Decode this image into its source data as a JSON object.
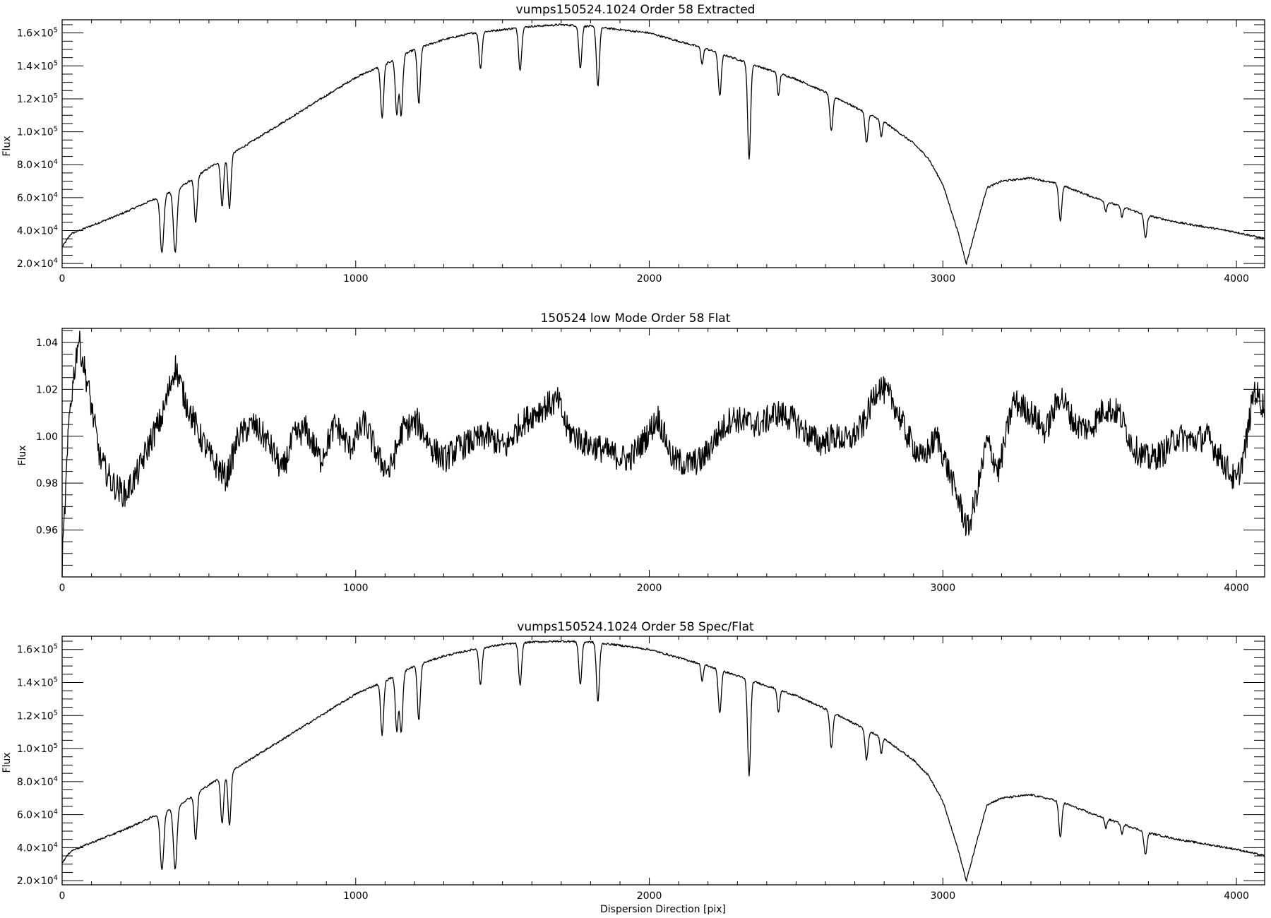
{
  "chart_data": [
    {
      "id": "extracted",
      "type": "line",
      "title": "vumps150524.1024 Order 58 Extracted",
      "xlabel": "",
      "ylabel": "Flux",
      "xlim": [
        0,
        4096
      ],
      "ylim": [
        17500,
        168000
      ],
      "x_ticks": [
        0,
        1000,
        2000,
        3000,
        4000
      ],
      "x_tick_labels": [
        "0",
        "1000",
        "2000",
        "3000",
        "4000"
      ],
      "y_ticks": [
        20000,
        40000,
        60000,
        80000,
        100000,
        120000,
        140000,
        160000
      ],
      "y_tick_labels": [
        {
          "mant": "2.0×10",
          "exp": "4"
        },
        {
          "mant": "4.0×10",
          "exp": "4"
        },
        {
          "mant": "6.0×10",
          "exp": "4"
        },
        {
          "mant": "8.0×10",
          "exp": "4"
        },
        {
          "mant": "1.0×10",
          "exp": "5"
        },
        {
          "mant": "1.2×10",
          "exp": "5"
        },
        {
          "mant": "1.4×10",
          "exp": "5"
        },
        {
          "mant": "1.6×10",
          "exp": "5"
        }
      ],
      "y_minor_step": 5000,
      "grid": false,
      "series": [
        {
          "envelope_x": [
            0,
            30,
            100,
            200,
            300,
            400,
            500,
            600,
            700,
            800,
            900,
            1000,
            1100,
            1200,
            1300,
            1400,
            1500,
            1600,
            1700,
            1800,
            1900,
            2000,
            2100,
            2200,
            2300,
            2400,
            2500,
            2600,
            2700,
            2800,
            2900,
            2950,
            3000,
            3050,
            3080,
            3110,
            3150,
            3200,
            3300,
            3400,
            3500,
            3600,
            3700,
            3800,
            3900,
            4000,
            4096
          ],
          "envelope_y": [
            30000,
            38000,
            43000,
            50000,
            58000,
            66000,
            78000,
            89000,
            100000,
            111000,
            122000,
            133000,
            141000,
            150000,
            156000,
            160000,
            162000,
            164000,
            165000,
            164000,
            162000,
            160000,
            155000,
            150000,
            144000,
            138000,
            132000,
            124000,
            115000,
            106000,
            93000,
            84000,
            68000,
            40000,
            20000,
            40000,
            66000,
            70000,
            72000,
            68000,
            61000,
            55000,
            49000,
            45000,
            42000,
            39000,
            35000
          ],
          "absorption_lines": [
            {
              "x": 340,
              "depth": 35000,
              "width": 6
            },
            {
              "x": 385,
              "depth": 38000,
              "width": 6
            },
            {
              "x": 455,
              "depth": 28000,
              "width": 5
            },
            {
              "x": 545,
              "depth": 28000,
              "width": 5
            },
            {
              "x": 570,
              "depth": 32000,
              "width": 5
            },
            {
              "x": 1090,
              "depth": 32000,
              "width": 5
            },
            {
              "x": 1140,
              "depth": 34000,
              "width": 5
            },
            {
              "x": 1155,
              "depth": 36000,
              "width": 5
            },
            {
              "x": 1215,
              "depth": 34000,
              "width": 5
            },
            {
              "x": 1425,
              "depth": 22000,
              "width": 5
            },
            {
              "x": 1560,
              "depth": 26000,
              "width": 5
            },
            {
              "x": 1765,
              "depth": 26000,
              "width": 5
            },
            {
              "x": 1825,
              "depth": 36000,
              "width": 5
            },
            {
              "x": 2180,
              "depth": 10000,
              "width": 4
            },
            {
              "x": 2240,
              "depth": 26000,
              "width": 5
            },
            {
              "x": 2340,
              "depth": 58000,
              "width": 5
            },
            {
              "x": 2440,
              "depth": 14000,
              "width": 4
            },
            {
              "x": 2620,
              "depth": 22000,
              "width": 5
            },
            {
              "x": 2740,
              "depth": 18000,
              "width": 5
            },
            {
              "x": 2790,
              "depth": 10000,
              "width": 4
            },
            {
              "x": 3400,
              "depth": 22000,
              "width": 5
            },
            {
              "x": 3555,
              "depth": 6000,
              "width": 4
            },
            {
              "x": 3610,
              "depth": 6000,
              "width": 4
            },
            {
              "x": 3690,
              "depth": 14000,
              "width": 5
            }
          ]
        }
      ]
    },
    {
      "id": "flat",
      "type": "line",
      "title": "150524 low Mode Order 58 Flat",
      "xlabel": "",
      "ylabel": "Flux",
      "xlim": [
        0,
        4096
      ],
      "ylim": [
        0.94,
        1.046
      ],
      "x_ticks": [
        0,
        1000,
        2000,
        3000,
        4000
      ],
      "x_tick_labels": [
        "0",
        "1000",
        "2000",
        "3000",
        "4000"
      ],
      "y_ticks": [
        0.96,
        0.98,
        1.0,
        1.02,
        1.04
      ],
      "y_tick_labels": [
        "0.96",
        "0.98",
        "1.00",
        "1.02",
        "1.04"
      ],
      "y_minor_step": 0.005,
      "grid": false,
      "series": [
        {
          "x": [
            0,
            25,
            55,
            90,
            130,
            170,
            215,
            260,
            300,
            340,
            385,
            420,
            470,
            510,
            560,
            600,
            650,
            700,
            750,
            790,
            830,
            880,
            930,
            980,
            1030,
            1080,
            1115,
            1160,
            1210,
            1260,
            1300,
            1350,
            1400,
            1450,
            1510,
            1560,
            1610,
            1650,
            1690,
            1720,
            1780,
            1830,
            1880,
            1930,
            1980,
            2030,
            2080,
            2130,
            2180,
            2230,
            2280,
            2330,
            2380,
            2430,
            2480,
            2530,
            2580,
            2630,
            2680,
            2730,
            2780,
            2830,
            2880,
            2930,
            2980,
            3020,
            3060,
            3085,
            3110,
            3150,
            3190,
            3240,
            3300,
            3350,
            3400,
            3450,
            3500,
            3550,
            3600,
            3650,
            3700,
            3750,
            3800,
            3850,
            3900,
            3950,
            4000,
            4030,
            4060,
            4096
          ],
          "y": [
            0.945,
            1.01,
            1.042,
            1.02,
            0.99,
            0.98,
            0.975,
            0.985,
            0.998,
            1.008,
            1.03,
            1.015,
            1.0,
            0.99,
            0.982,
            1.0,
            1.005,
            0.998,
            0.985,
            1.0,
            1.003,
            0.99,
            1.005,
            0.995,
            1.006,
            0.99,
            0.985,
            1.003,
            1.006,
            0.995,
            0.99,
            0.995,
            0.998,
            1.0,
            0.995,
            1.005,
            1.01,
            1.013,
            1.015,
            1.003,
            0.997,
            0.995,
            0.992,
            0.99,
            0.998,
            1.008,
            0.99,
            0.988,
            0.99,
            1.0,
            1.008,
            1.006,
            1.005,
            1.01,
            1.008,
            1.002,
            0.997,
            1.0,
            0.998,
            1.005,
            1.022,
            1.015,
            1.0,
            0.99,
            1.0,
            0.985,
            0.97,
            0.96,
            0.972,
            0.998,
            0.985,
            1.015,
            1.01,
            1.002,
            1.018,
            1.005,
            1.003,
            1.012,
            1.01,
            0.995,
            0.99,
            0.993,
            1.0,
            0.998,
            1.0,
            0.99,
            0.98,
            0.995,
            1.02,
            1.012
          ]
        }
      ]
    },
    {
      "id": "specflat",
      "type": "line",
      "title": "vumps150524.1024 Order 58 Spec/Flat",
      "xlabel": "Dispersion Direction [pix]",
      "ylabel": "Flux",
      "xlim": [
        0,
        4096
      ],
      "ylim": [
        17500,
        168000
      ],
      "x_ticks": [
        0,
        1000,
        2000,
        3000,
        4000
      ],
      "x_tick_labels": [
        "0",
        "1000",
        "2000",
        "3000",
        "4000"
      ],
      "y_ticks": [
        20000,
        40000,
        60000,
        80000,
        100000,
        120000,
        140000,
        160000
      ],
      "y_tick_labels": [
        {
          "mant": "2.0×10",
          "exp": "4"
        },
        {
          "mant": "4.0×10",
          "exp": "4"
        },
        {
          "mant": "6.0×10",
          "exp": "4"
        },
        {
          "mant": "8.0×10",
          "exp": "4"
        },
        {
          "mant": "1.0×10",
          "exp": "5"
        },
        {
          "mant": "1.2×10",
          "exp": "5"
        },
        {
          "mant": "1.4×10",
          "exp": "5"
        },
        {
          "mant": "1.6×10",
          "exp": "5"
        }
      ],
      "y_minor_step": 5000,
      "grid": false,
      "series": [
        {
          "envelope_x": [
            0,
            30,
            100,
            200,
            300,
            400,
            500,
            600,
            700,
            800,
            900,
            1000,
            1100,
            1200,
            1300,
            1400,
            1500,
            1600,
            1700,
            1800,
            1900,
            2000,
            2100,
            2200,
            2300,
            2400,
            2500,
            2600,
            2700,
            2800,
            2900,
            2950,
            3000,
            3050,
            3080,
            3110,
            3150,
            3200,
            3300,
            3400,
            3500,
            3600,
            3700,
            3800,
            3900,
            4000,
            4096
          ],
          "envelope_y": [
            31000,
            38000,
            43000,
            50000,
            58000,
            66000,
            78000,
            89000,
            100000,
            111000,
            122000,
            133000,
            141000,
            150000,
            156000,
            160000,
            163000,
            164500,
            165000,
            164500,
            162500,
            160000,
            155000,
            150000,
            144000,
            138000,
            132000,
            124000,
            115000,
            106000,
            93000,
            84000,
            68000,
            40000,
            20000,
            40000,
            66000,
            70000,
            72000,
            68000,
            61000,
            55000,
            49000,
            45000,
            42000,
            39000,
            35000
          ],
          "absorption_lines": [
            {
              "x": 340,
              "depth": 35000,
              "width": 6
            },
            {
              "x": 385,
              "depth": 38000,
              "width": 6
            },
            {
              "x": 455,
              "depth": 28000,
              "width": 5
            },
            {
              "x": 545,
              "depth": 28000,
              "width": 5
            },
            {
              "x": 570,
              "depth": 32000,
              "width": 5
            },
            {
              "x": 1090,
              "depth": 32000,
              "width": 5
            },
            {
              "x": 1140,
              "depth": 34000,
              "width": 5
            },
            {
              "x": 1155,
              "depth": 36000,
              "width": 5
            },
            {
              "x": 1215,
              "depth": 34000,
              "width": 5
            },
            {
              "x": 1425,
              "depth": 22000,
              "width": 5
            },
            {
              "x": 1560,
              "depth": 26000,
              "width": 5
            },
            {
              "x": 1765,
              "depth": 26000,
              "width": 5
            },
            {
              "x": 1825,
              "depth": 36000,
              "width": 5
            },
            {
              "x": 2180,
              "depth": 10000,
              "width": 4
            },
            {
              "x": 2240,
              "depth": 26000,
              "width": 5
            },
            {
              "x": 2340,
              "depth": 58000,
              "width": 5
            },
            {
              "x": 2440,
              "depth": 14000,
              "width": 4
            },
            {
              "x": 2620,
              "depth": 22000,
              "width": 5
            },
            {
              "x": 2740,
              "depth": 18000,
              "width": 5
            },
            {
              "x": 2790,
              "depth": 10000,
              "width": 4
            },
            {
              "x": 3400,
              "depth": 22000,
              "width": 5
            },
            {
              "x": 3555,
              "depth": 6000,
              "width": 4
            },
            {
              "x": 3610,
              "depth": 6000,
              "width": 4
            },
            {
              "x": 3690,
              "depth": 14000,
              "width": 5
            }
          ]
        }
      ]
    }
  ]
}
